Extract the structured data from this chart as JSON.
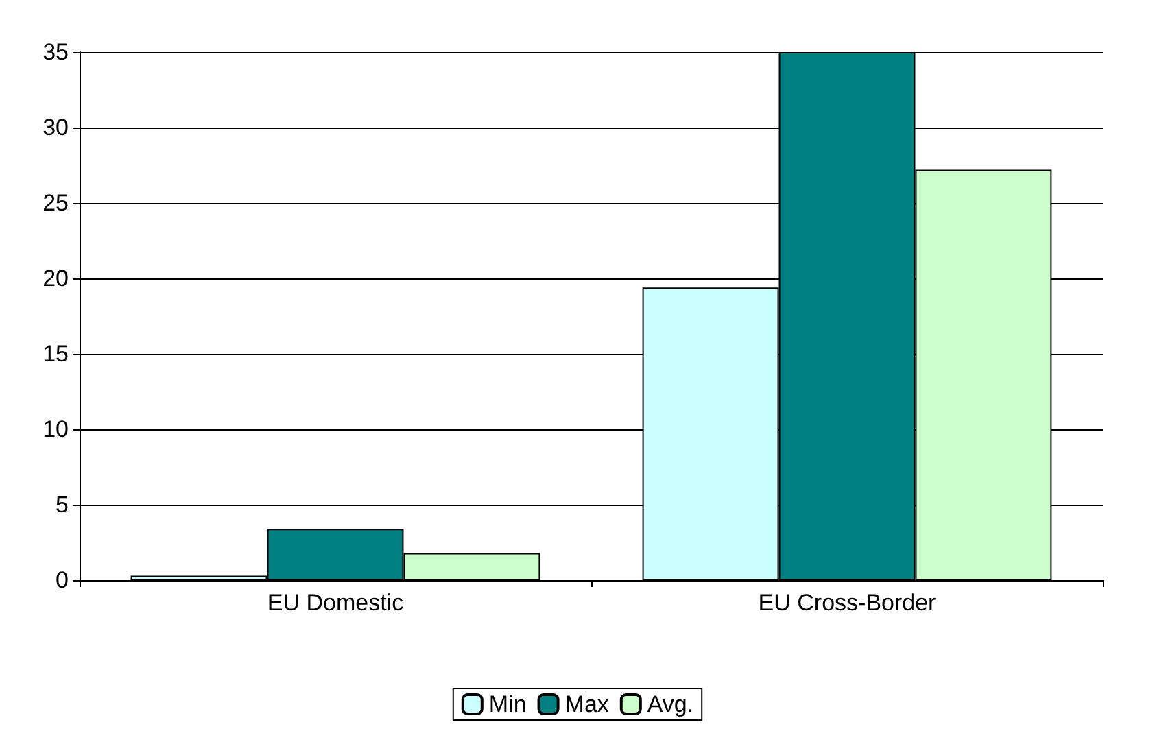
{
  "chart_data": {
    "type": "bar",
    "categories": [
      "EU Domestic",
      "EU Cross-Border"
    ],
    "series": [
      {
        "name": "Min",
        "color": "#ccffff",
        "values": [
          0.3,
          19.4
        ]
      },
      {
        "name": "Max",
        "color": "#008080",
        "values": [
          3.4,
          35
        ]
      },
      {
        "name": "Avg.",
        "color": "#ccffcc",
        "values": [
          1.8,
          27.2
        ]
      }
    ],
    "ylim": [
      0,
      35
    ],
    "yticks": [
      0,
      5,
      10,
      15,
      20,
      25,
      30,
      35
    ],
    "grid": "y",
    "legend": "bottom"
  }
}
